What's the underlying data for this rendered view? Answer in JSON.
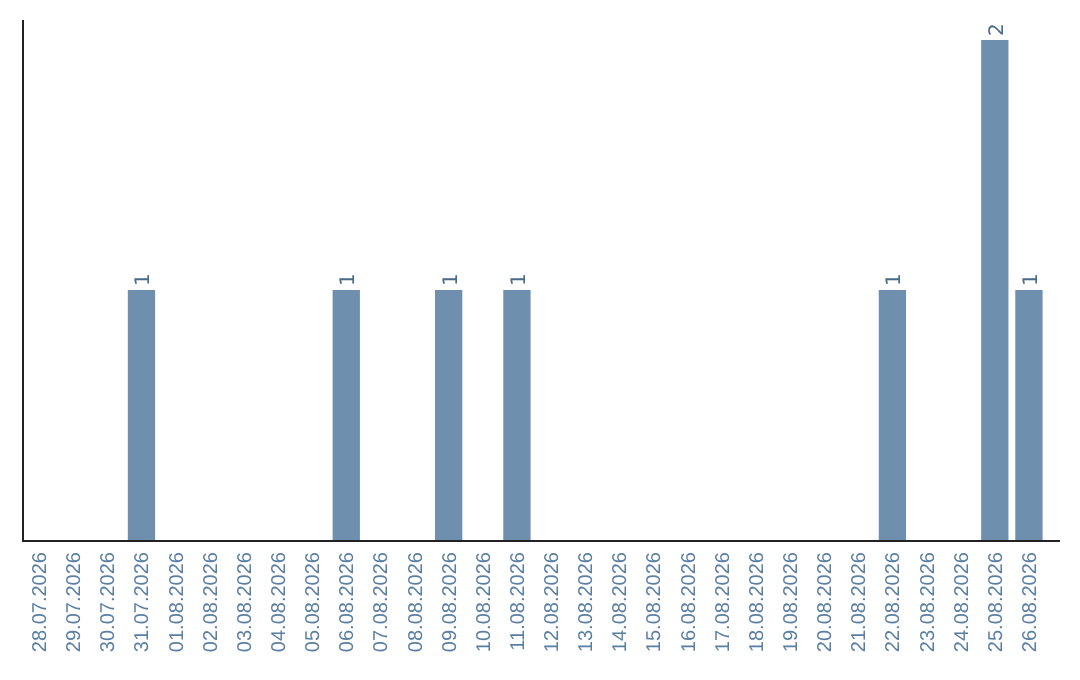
{
  "chart_data": {
    "type": "bar",
    "categories": [
      "28.07.2026",
      "29.07.2026",
      "30.07.2026",
      "31.07.2026",
      "01.08.2026",
      "02.08.2026",
      "03.08.2026",
      "04.08.2026",
      "05.08.2026",
      "06.08.2026",
      "07.08.2026",
      "08.08.2026",
      "09.08.2026",
      "10.08.2026",
      "11.08.2026",
      "12.08.2026",
      "13.08.2026",
      "14.08.2026",
      "15.08.2026",
      "16.08.2026",
      "17.08.2026",
      "18.08.2026",
      "19.08.2026",
      "20.08.2026",
      "21.08.2026",
      "22.08.2026",
      "23.08.2026",
      "24.08.2026",
      "25.08.2026",
      "26.08.2026"
    ],
    "values": [
      0,
      0,
      0,
      1,
      0,
      0,
      0,
      0,
      0,
      1,
      0,
      0,
      1,
      0,
      1,
      0,
      0,
      0,
      0,
      0,
      0,
      0,
      0,
      0,
      0,
      1,
      0,
      0,
      2,
      1
    ],
    "value_labels": [
      null,
      null,
      null,
      "1",
      null,
      null,
      null,
      null,
      null,
      "1",
      null,
      null,
      "1",
      null,
      "1",
      null,
      null,
      null,
      null,
      null,
      null,
      null,
      null,
      null,
      null,
      "1",
      null,
      null,
      "2",
      "1"
    ],
    "color": "#6e8fae"
  }
}
